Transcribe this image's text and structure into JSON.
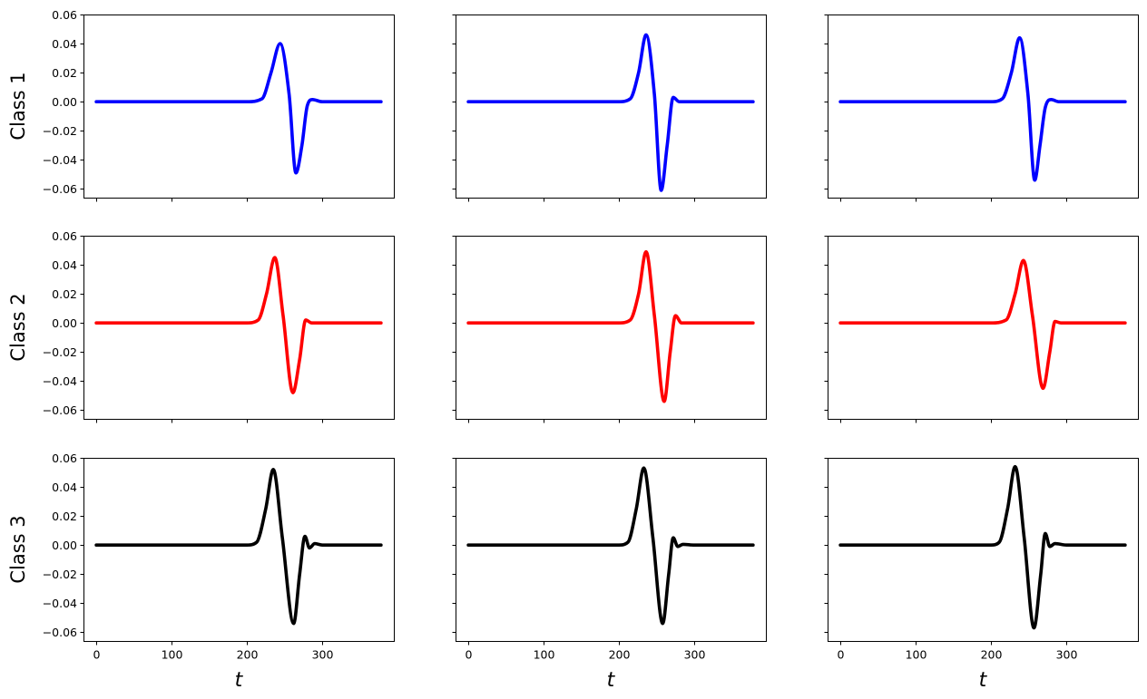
{
  "chart_data": {
    "type": "line",
    "layout": "3x3 small multiples, shared axes",
    "rows": [
      {
        "label": "Class 1",
        "color": "#0000ff"
      },
      {
        "label": "Class 2",
        "color": "#ff0000"
      },
      {
        "label": "Class 3",
        "color": "#000000"
      }
    ],
    "xlabel": "t",
    "xlim": [
      -17,
      395
    ],
    "ylim": [
      -0.066,
      0.06
    ],
    "xticks": [
      0,
      100,
      200,
      300
    ],
    "yticks": [
      0.06,
      0.04,
      0.02,
      0.0,
      -0.02,
      -0.04,
      -0.06
    ],
    "ytick_labels": [
      "0.06",
      "0.04",
      "0.02",
      "0.00",
      "−0.02",
      "−0.04",
      "−0.06"
    ],
    "panels": [
      {
        "row": 0,
        "col": 0,
        "series": [
          {
            "x": [
              0,
              200,
              220,
              232,
              244,
              256,
              265,
              273,
              280,
              287,
              300,
              320,
              345,
              370,
              378
            ],
            "y": [
              0,
              0,
              0.002,
              0.02,
              0.04,
              0.005,
              -0.049,
              -0.03,
              -0.003,
              0.0015,
              0.0,
              0.0,
              0.0,
              0.0,
              0.0
            ]
          }
        ]
      },
      {
        "row": 0,
        "col": 1,
        "series": [
          {
            "x": [
              0,
              200,
              215,
              226,
              236,
              247,
              256,
              264,
              272,
              280,
              290,
              320,
              345,
              370,
              378
            ],
            "y": [
              0,
              0,
              0.002,
              0.02,
              0.046,
              0.005,
              -0.061,
              -0.03,
              0.003,
              0.0,
              0.0,
              0.0,
              0.0,
              0.0,
              0.0
            ]
          }
        ]
      },
      {
        "row": 0,
        "col": 2,
        "series": [
          {
            "x": [
              0,
              200,
              215,
              227,
              238,
              249,
              258,
              265,
              272,
              280,
              290,
              320,
              345,
              370,
              378
            ],
            "y": [
              0,
              0,
              0.002,
              0.02,
              0.044,
              0.005,
              -0.054,
              -0.03,
              -0.004,
              0.0015,
              0.0,
              0.0,
              0.0,
              0.0,
              0.0
            ]
          }
        ]
      },
      {
        "row": 1,
        "col": 0,
        "series": [
          {
            "x": [
              0,
              200,
              215,
              226,
              237,
              248,
              261,
              270,
              278,
              286,
              300,
              320,
              345,
              370,
              378
            ],
            "y": [
              0,
              0,
              0.002,
              0.02,
              0.045,
              0.005,
              -0.048,
              -0.025,
              0.002,
              0.0,
              0.0,
              0.0,
              0.0,
              0.0,
              0.0
            ]
          }
        ]
      },
      {
        "row": 1,
        "col": 1,
        "series": [
          {
            "x": [
              0,
              200,
              215,
              226,
              236,
              247,
              260,
              268,
              275,
              283,
              295,
              320,
              345,
              370,
              378
            ],
            "y": [
              0,
              0,
              0.002,
              0.02,
              0.049,
              0.005,
              -0.054,
              -0.02,
              0.005,
              0.0,
              0.0,
              0.0,
              0.0,
              0.0,
              0.0
            ]
          }
        ]
      },
      {
        "row": 1,
        "col": 2,
        "series": [
          {
            "x": [
              0,
              200,
              220,
              232,
              243,
              255,
              269,
              278,
              285,
              293,
              305,
              320,
              345,
              370,
              378
            ],
            "y": [
              0,
              0,
              0.002,
              0.02,
              0.043,
              0.005,
              -0.045,
              -0.02,
              0.001,
              0.0,
              0.0,
              0.0,
              0.0,
              0.0,
              0.0
            ]
          }
        ]
      },
      {
        "row": 2,
        "col": 0,
        "series": [
          {
            "x": [
              0,
              200,
              213,
              225,
              235,
              247,
              262,
              270,
              277,
              283,
              290,
              300,
              320,
              345,
              370,
              378
            ],
            "y": [
              0,
              0,
              0.002,
              0.025,
              0.052,
              0.005,
              -0.054,
              -0.02,
              0.006,
              -0.002,
              0.001,
              0.0,
              0.0,
              0.0,
              0.0,
              0.0
            ]
          }
        ]
      },
      {
        "row": 2,
        "col": 1,
        "series": [
          {
            "x": [
              0,
              200,
              212,
              223,
              233,
              245,
              258,
              266,
              272,
              278,
              285,
              300,
              320,
              345,
              370,
              378
            ],
            "y": [
              0,
              0,
              0.002,
              0.025,
              0.053,
              0.005,
              -0.054,
              -0.02,
              0.005,
              -0.001,
              0.0005,
              0.0,
              0.0,
              0.0,
              0.0,
              0.0
            ]
          }
        ]
      },
      {
        "row": 2,
        "col": 2,
        "series": [
          {
            "x": [
              0,
              200,
              211,
              222,
              232,
              244,
              257,
              266,
              272,
              278,
              285,
              300,
              320,
              345,
              370,
              378
            ],
            "y": [
              0,
              0,
              0.002,
              0.025,
              0.054,
              0.005,
              -0.057,
              -0.02,
              0.008,
              -0.001,
              0.001,
              0.0,
              0.0,
              0.0,
              0.0,
              0.0
            ]
          }
        ]
      }
    ]
  }
}
